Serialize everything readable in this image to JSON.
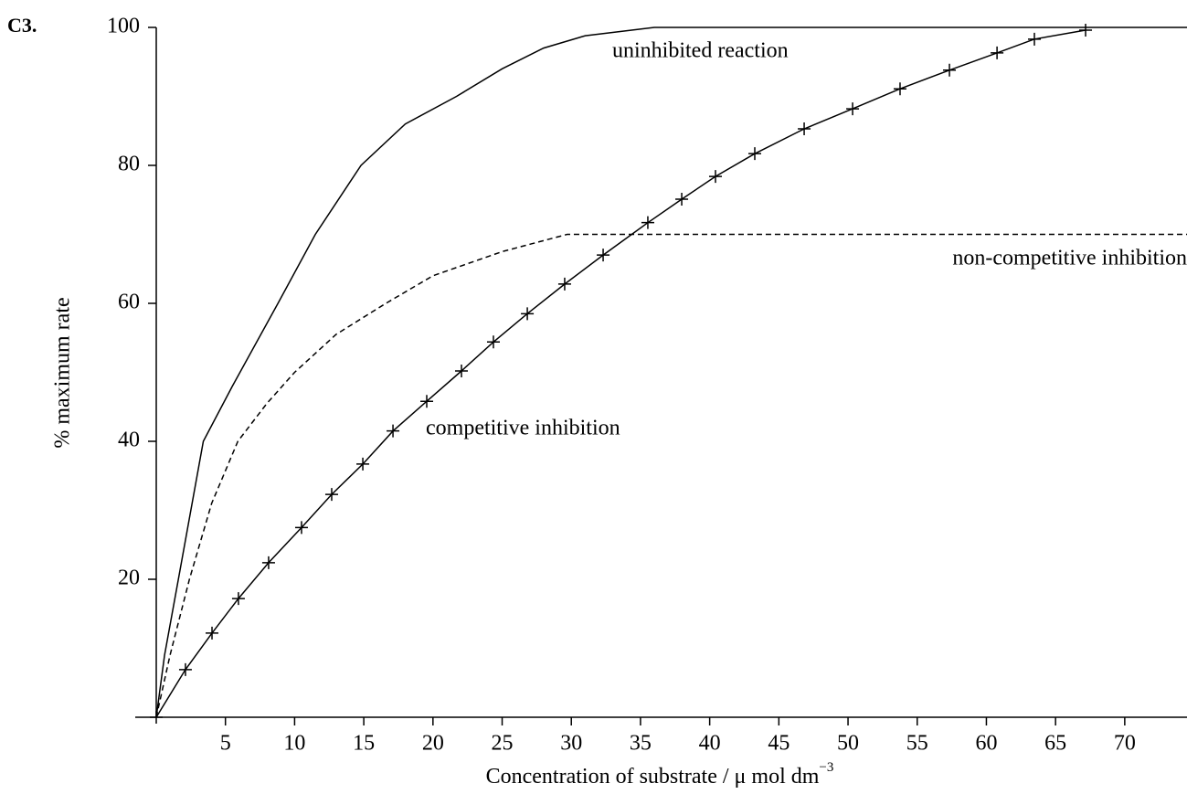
{
  "chart_data": {
    "type": "line",
    "label": "C3.",
    "xlabel": "Concentration of substrate / μ mol dm",
    "xlabel_superscript": "−3",
    "ylabel": "% maximum rate",
    "xlim": [
      0,
      74.5
    ],
    "ylim": [
      0,
      100
    ],
    "xticks": [
      5,
      10,
      15,
      20,
      25,
      30,
      35,
      40,
      45,
      50,
      55,
      60,
      65,
      70
    ],
    "yticks": [
      20,
      40,
      60,
      80,
      100
    ],
    "series": [
      {
        "name": "uninhibited reaction",
        "color": "#000000",
        "dash": false,
        "marker": false,
        "x": [
          0,
          0.6,
          1.6,
          3.4,
          5.5,
          8.8,
          11.5,
          14.8,
          18,
          21.7,
          25,
          28,
          31,
          36,
          74.5
        ],
        "values": [
          0,
          9,
          20,
          40,
          48,
          60,
          70,
          80,
          86,
          90,
          94,
          97,
          98.8,
          100,
          100
        ]
      },
      {
        "name": "non-competitive inhibition",
        "color": "#000000",
        "dash": true,
        "marker": false,
        "x": [
          0,
          1,
          2.4,
          4,
          5.9,
          8,
          10,
          13,
          16.6,
          20,
          25,
          29.7,
          74.5
        ],
        "values": [
          0,
          9,
          20,
          31,
          40,
          45.5,
          50,
          55.5,
          60,
          64,
          67.5,
          70,
          70
        ]
      },
      {
        "name": "competitive inhibition",
        "color": "#000000",
        "dash": false,
        "marker": true,
        "x": [
          0,
          2.11,
          4.03,
          5.94,
          8.12,
          10.5,
          12.68,
          14.93,
          17.11,
          19.55,
          22.06,
          24.37,
          26.82,
          29.52,
          32.3,
          35.53,
          37.98,
          40.42,
          43.26,
          46.83,
          50.33,
          53.76,
          57.33,
          60.77,
          63.47,
          67.17
        ],
        "values": [
          0,
          6.9,
          12.2,
          17.2,
          22.4,
          27.5,
          32.3,
          36.7,
          41.5,
          45.8,
          50.2,
          54.4,
          58.5,
          62.8,
          67,
          71.7,
          75.1,
          78.4,
          81.7,
          85.3,
          88.2,
          91.1,
          93.8,
          96.3,
          98.3,
          99.6
        ]
      }
    ]
  }
}
